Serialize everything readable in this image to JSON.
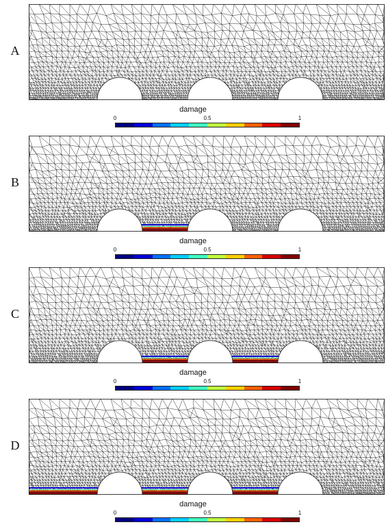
{
  "panels": [
    {
      "letter": "A",
      "damage": []
    },
    {
      "letter": "B",
      "damage": [
        "gap1"
      ]
    },
    {
      "letter": "C",
      "damage": [
        "gap1",
        "gap2"
      ]
    },
    {
      "letter": "D",
      "damage": [
        "left",
        "gap1",
        "gap2"
      ]
    }
  ],
  "colorbar": {
    "label": "damage",
    "ticks": [
      "0",
      "0.5",
      "1"
    ],
    "colors": [
      "#000080",
      "#0000d8",
      "#0070ff",
      "#00d0ff",
      "#40ffbf",
      "#bfff40",
      "#ffd000",
      "#ff6000",
      "#d80000",
      "#800000"
    ]
  }
}
